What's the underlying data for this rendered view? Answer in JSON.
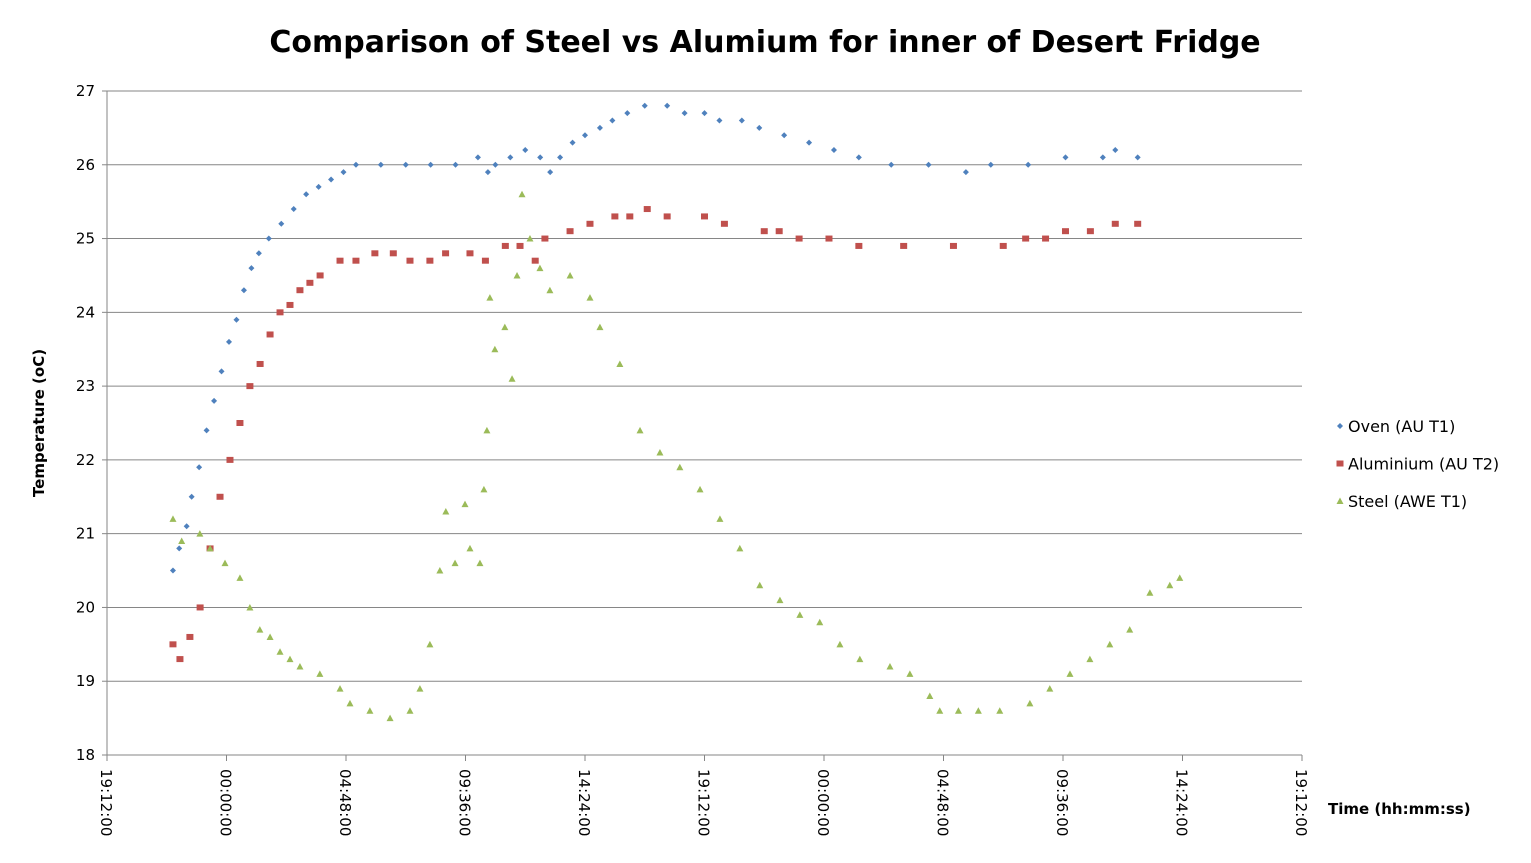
{
  "chart_data": {
    "type": "scatter",
    "title": "Comparison of Steel vs Alumium for inner of Desert Fridge",
    "x_label": "Time (hh:mm:ss)",
    "y_label": "Temperature (oC)",
    "xlim": [
      0,
      48
    ],
    "xticks": [
      {
        "value": 0,
        "label": "19:12:00"
      },
      {
        "value": 4.8,
        "label": "00:00:00"
      },
      {
        "value": 9.6,
        "label": "04:48:00"
      },
      {
        "value": 14.4,
        "label": "09:36:00"
      },
      {
        "value": 19.2,
        "label": "14:24:00"
      },
      {
        "value": 24,
        "label": "19:12:00"
      },
      {
        "value": 28.8,
        "label": "00:00:00"
      },
      {
        "value": 33.6,
        "label": "04:48:00"
      },
      {
        "value": 38.4,
        "label": "09:36:00"
      },
      {
        "value": 43.2,
        "label": "14:24:00"
      },
      {
        "value": 48,
        "label": "19:12:00"
      }
    ],
    "ylim": [
      18,
      27
    ],
    "yticks": [
      18,
      19,
      20,
      21,
      22,
      23,
      24,
      25,
      26,
      27
    ],
    "grid": true,
    "legend": "right",
    "series": [
      {
        "name": "Oven (AU T1)",
        "color": "#4f81bd",
        "marker": "diamond",
        "x": [
          2.65,
          2.9,
          3.2,
          3.4,
          3.7,
          4.0,
          4.3,
          4.6,
          4.9,
          5.2,
          5.5,
          5.8,
          6.1,
          6.5,
          7.0,
          7.5,
          8.0,
          8.5,
          9.0,
          9.5,
          10.0,
          11.0,
          12.0,
          13.0,
          14.0,
          14.9,
          15.3,
          15.6,
          16.2,
          16.8,
          17.4,
          17.8,
          18.2,
          18.7,
          19.2,
          19.8,
          20.3,
          20.9,
          21.6,
          22.5,
          23.2,
          24.0,
          24.6,
          25.5,
          26.2,
          27.2,
          28.2,
          29.2,
          30.2,
          31.5,
          33.0,
          34.5,
          35.5,
          37.0,
          38.5,
          40.0,
          40.5,
          41.4
        ],
        "values": [
          20.5,
          20.8,
          21.1,
          21.5,
          21.9,
          22.4,
          22.8,
          23.2,
          23.6,
          23.9,
          24.3,
          24.6,
          24.8,
          25.0,
          25.2,
          25.4,
          25.6,
          25.7,
          25.8,
          25.9,
          26.0,
          26.0,
          26.0,
          26.0,
          26.0,
          26.1,
          25.9,
          26.0,
          26.1,
          26.2,
          26.1,
          25.9,
          26.1,
          26.3,
          26.4,
          26.5,
          26.6,
          26.7,
          26.8,
          26.8,
          26.7,
          26.7,
          26.6,
          26.6,
          26.5,
          26.4,
          26.3,
          26.2,
          26.1,
          26.0,
          26.0,
          25.9,
          26.0,
          26.0,
          26.1,
          26.1,
          26.2,
          26.1
        ]
      },
      {
        "name": "Aluminium (AU T2)",
        "color": "#c0504d",
        "marker": "square",
        "x": [
          2.65,
          2.93,
          3.33,
          3.74,
          4.14,
          4.54,
          4.94,
          5.34,
          5.74,
          6.15,
          6.55,
          6.95,
          7.35,
          7.75,
          8.15,
          8.56,
          9.36,
          10.0,
          10.76,
          11.5,
          12.17,
          12.97,
          13.6,
          14.58,
          15.2,
          16.0,
          16.59,
          17.2,
          17.59,
          18.6,
          19.4,
          20.4,
          21.0,
          21.7,
          22.5,
          24.0,
          24.8,
          26.4,
          27.0,
          27.8,
          29.0,
          30.2,
          32.0,
          34.0,
          36.0,
          36.9,
          37.7,
          38.5,
          39.5,
          40.5,
          41.4
        ],
        "values": [
          19.5,
          19.3,
          19.6,
          20.0,
          20.8,
          21.5,
          22.0,
          22.5,
          23.0,
          23.3,
          23.7,
          24.0,
          24.1,
          24.3,
          24.4,
          24.5,
          24.7,
          24.7,
          24.8,
          24.8,
          24.7,
          24.7,
          24.8,
          24.8,
          24.7,
          24.9,
          24.9,
          24.7,
          25.0,
          25.1,
          25.2,
          25.3,
          25.3,
          25.4,
          25.3,
          25.3,
          25.2,
          25.1,
          25.1,
          25.0,
          25.0,
          24.9,
          24.9,
          24.9,
          24.9,
          25.0,
          25.0,
          25.1,
          25.1,
          25.2,
          25.2
        ]
      },
      {
        "name": "Steel (AWE T1)",
        "color": "#9bbb59",
        "marker": "triangle",
        "x": [
          2.65,
          3.0,
          3.73,
          4.14,
          4.74,
          5.34,
          5.74,
          6.14,
          6.55,
          6.95,
          7.35,
          7.75,
          8.55,
          9.36,
          9.76,
          10.56,
          11.37,
          12.17,
          12.57,
          12.97,
          13.37,
          13.61,
          13.98,
          14.38,
          14.58,
          14.98,
          15.14,
          15.26,
          15.38,
          15.58,
          15.98,
          16.27,
          16.47,
          16.67,
          16.99,
          17.39,
          17.79,
          18.6,
          19.4,
          19.8,
          20.6,
          21.41,
          22.21,
          23.01,
          23.82,
          24.62,
          25.42,
          26.22,
          27.03,
          27.83,
          28.63,
          29.44,
          30.24,
          31.45,
          32.25,
          33.05,
          33.45,
          34.2,
          35.0,
          35.86,
          37.07,
          37.87,
          38.68,
          39.48,
          40.28,
          41.08,
          41.89,
          42.69,
          43.09
        ],
        "values": [
          21.2,
          20.9,
          21.0,
          20.8,
          20.6,
          20.4,
          20.0,
          19.7,
          19.6,
          19.4,
          19.3,
          19.2,
          19.1,
          18.9,
          18.7,
          18.6,
          18.5,
          18.6,
          18.9,
          19.5,
          20.5,
          21.3,
          20.6,
          21.4,
          20.8,
          20.6,
          21.6,
          22.4,
          24.2,
          23.5,
          23.8,
          23.1,
          24.5,
          25.6,
          25.0,
          24.6,
          24.3,
          24.5,
          24.2,
          23.8,
          23.3,
          22.4,
          22.1,
          21.9,
          21.6,
          21.2,
          20.8,
          20.3,
          20.1,
          19.9,
          19.8,
          19.5,
          19.3,
          19.2,
          19.1,
          18.8,
          18.6,
          18.6,
          18.6,
          18.6,
          18.7,
          18.9,
          19.1,
          19.3,
          19.5,
          19.7,
          20.2,
          20.3,
          20.4
        ]
      }
    ]
  }
}
